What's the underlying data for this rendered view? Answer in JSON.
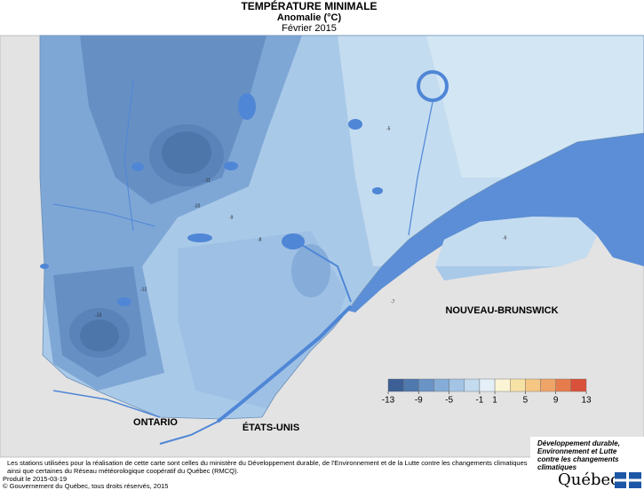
{
  "header": {
    "title": "TEMPÉRATURE MINIMALE",
    "subtitle": "Anomalie (°C)",
    "date": "Février 2015"
  },
  "map": {
    "regions": [
      "ONTARIO",
      "ÉTATS-UNIS",
      "NOUVEAU-BRUNSWICK"
    ],
    "contour_labels": [
      "-11",
      "-10",
      "-9",
      "-8",
      "-7",
      "-6",
      "-5",
      "-13",
      "-12"
    ]
  },
  "legend": {
    "range": [
      -13,
      13
    ],
    "ticks": [
      -13,
      -9,
      -5,
      -1,
      1,
      5,
      9,
      13
    ],
    "colors": [
      "#3c5f95",
      "#4f78ad",
      "#6a93c6",
      "#85acd6",
      "#a3c4e4",
      "#c3dbef",
      "#e4eff8",
      "#fbf5d6",
      "#f7e2a6",
      "#f5c684",
      "#efa468",
      "#e67c4e",
      "#d9513a"
    ]
  },
  "footer": {
    "lines": [
      "Les stations utilisées pour la réalisation de cette carte sont celles du ministère du Développement durable, de l'Environnement et de la Lutte contre les changements climatiques",
      "ainsi que certaines du Réseau météorologique coopératif du Québec (RMCQ).",
      "Produit le 2015-03-19",
      "© Gouvernement du Québec, tous droits réservés, 2015"
    ]
  },
  "logo": {
    "text": [
      "Développement durable,",
      "Environnement et Lutte",
      "contre les changements",
      "climatiques"
    ],
    "name": "Québec"
  }
}
